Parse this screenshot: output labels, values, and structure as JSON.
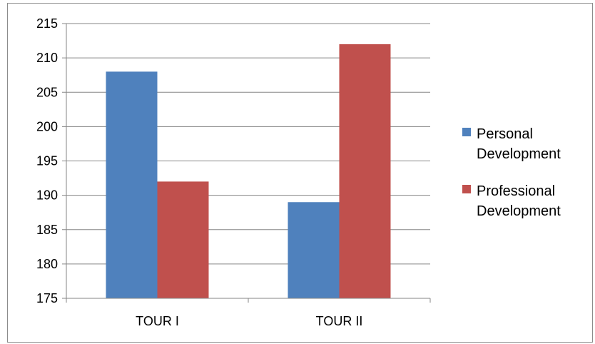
{
  "chart_data": {
    "type": "bar",
    "title": "",
    "xlabel": "",
    "ylabel": "",
    "categories": [
      "TOUR I",
      "TOUR II"
    ],
    "series": [
      {
        "name": "Personal Development",
        "values": [
          208,
          189
        ],
        "color": "#4f81bd"
      },
      {
        "name": "Professional Development",
        "values": [
          192,
          212
        ],
        "color": "#c0504d"
      }
    ],
    "ylim": [
      175,
      215
    ],
    "yticks": [
      175,
      180,
      185,
      190,
      195,
      200,
      205,
      210,
      215
    ],
    "grid": true,
    "legend_position": "right",
    "legend_labels": [
      [
        "Personal",
        "Development"
      ],
      [
        "Professional",
        "Development"
      ]
    ]
  }
}
